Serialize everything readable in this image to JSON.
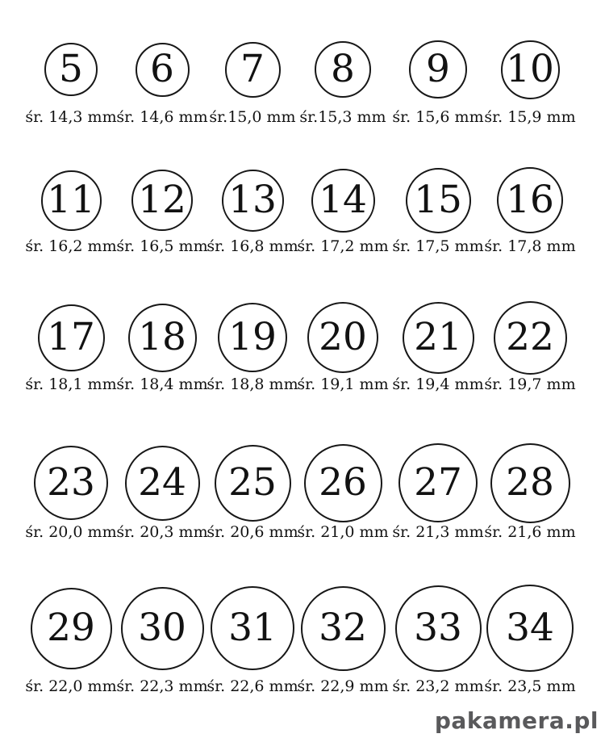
{
  "page": {
    "background": "#ffffff",
    "ink_color": "#171717"
  },
  "watermark": {
    "text": "pakamera.pl",
    "color": "#59595b"
  },
  "chart_data": {
    "type": "table",
    "description_visible_text": "Ring size circles numbered 5-34 with inner diameter in mm (śr. = średnica / diameter), decimal comma notation",
    "unit": "mm",
    "rows": [
      [
        {
          "size": "5",
          "mm": 14.3,
          "label": "śr. 14,3 mm"
        },
        {
          "size": "6",
          "mm": 14.6,
          "label": "śr. 14,6 mm"
        },
        {
          "size": "7",
          "mm": 15.0,
          "label": "śr.15,0 mm"
        },
        {
          "size": "8",
          "mm": 15.3,
          "label": "śr.15,3 mm"
        },
        {
          "size": "9",
          "mm": 15.6,
          "label": "śr. 15,6 mm"
        },
        {
          "size": "10",
          "mm": 15.9,
          "label": "śr. 15,9 mm"
        }
      ],
      [
        {
          "size": "11",
          "mm": 16.2,
          "label": "śr. 16,2 mm"
        },
        {
          "size": "12",
          "mm": 16.5,
          "label": "śr. 16,5 mm"
        },
        {
          "size": "13",
          "mm": 16.8,
          "label": "śr. 16,8 mm"
        },
        {
          "size": "14",
          "mm": 17.2,
          "label": "śr. 17,2 mm"
        },
        {
          "size": "15",
          "mm": 17.5,
          "label": "śr. 17,5 mm"
        },
        {
          "size": "16",
          "mm": 17.8,
          "label": "śr. 17,8 mm"
        }
      ],
      [
        {
          "size": "17",
          "mm": 18.1,
          "label": "śr. 18,1 mm"
        },
        {
          "size": "18",
          "mm": 18.4,
          "label": "śr. 18,4 mm"
        },
        {
          "size": "19",
          "mm": 18.8,
          "label": "śr. 18,8 mm"
        },
        {
          "size": "20",
          "mm": 19.1,
          "label": "śr. 19,1 mm"
        },
        {
          "size": "21",
          "mm": 19.4,
          "label": "śr. 19,4 mm"
        },
        {
          "size": "22",
          "mm": 19.7,
          "label": "śr. 19,7 mm"
        }
      ],
      [
        {
          "size": "23",
          "mm": 20.0,
          "label": "śr. 20,0 mm"
        },
        {
          "size": "24",
          "mm": 20.3,
          "label": "śr. 20,3 mm"
        },
        {
          "size": "25",
          "mm": 20.6,
          "label": "śr. 20,6 mm"
        },
        {
          "size": "26",
          "mm": 21.0,
          "label": "śr. 21,0 mm"
        },
        {
          "size": "27",
          "mm": 21.3,
          "label": "śr. 21,3 mm"
        },
        {
          "size": "28",
          "mm": 21.6,
          "label": "śr. 21,6 mm"
        }
      ],
      [
        {
          "size": "29",
          "mm": 22.0,
          "label": "śr. 22,0 mm"
        },
        {
          "size": "30",
          "mm": 22.3,
          "label": "śr. 22,3 mm"
        },
        {
          "size": "31",
          "mm": 22.6,
          "label": "śr. 22,6 mm"
        },
        {
          "size": "32",
          "mm": 22.9,
          "label": "śr. 22,9 mm"
        },
        {
          "size": "33",
          "mm": 23.2,
          "label": "śr. 23,2 mm"
        },
        {
          "size": "34",
          "mm": 23.5,
          "label": "śr. 23,5 mm"
        }
      ]
    ]
  }
}
